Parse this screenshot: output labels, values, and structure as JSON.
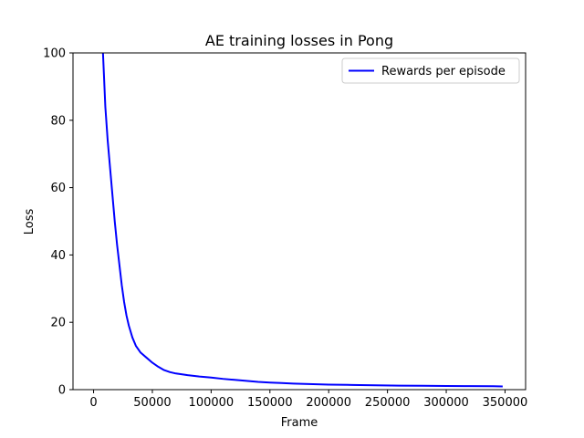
{
  "chart_data": {
    "type": "line",
    "title": "AE training losses in Pong",
    "xlabel": "Frame",
    "ylabel": "Loss",
    "xlim": [
      -17500,
      367500
    ],
    "ylim": [
      0,
      100
    ],
    "xticks": [
      0,
      50000,
      100000,
      150000,
      200000,
      250000,
      300000,
      350000
    ],
    "xtick_labels": [
      "0",
      "50000",
      "100000",
      "150000",
      "200000",
      "250000",
      "300000",
      "350000"
    ],
    "yticks": [
      0,
      20,
      40,
      60,
      80,
      100
    ],
    "ytick_labels": [
      "0",
      "20",
      "40",
      "60",
      "80",
      "100"
    ],
    "grid": false,
    "legend_position": "top-right",
    "series": [
      {
        "name": "Rewards per episode",
        "color": "#0000ff",
        "x": [
          8000,
          9000,
          10000,
          12000,
          14000,
          16000,
          18000,
          20000,
          22000,
          24000,
          26000,
          28000,
          30000,
          33000,
          36000,
          40000,
          45000,
          50000,
          55000,
          60000,
          65000,
          70000,
          80000,
          90000,
          100000,
          110000,
          120000,
          130000,
          140000,
          150000,
          160000,
          170000,
          180000,
          190000,
          200000,
          220000,
          240000,
          260000,
          280000,
          300000,
          320000,
          340000,
          348000
        ],
        "y": [
          100,
          92,
          84,
          74,
          66,
          58,
          50,
          43,
          37,
          31,
          26,
          22,
          19,
          15.5,
          13,
          11,
          9.5,
          8,
          6.8,
          5.8,
          5.2,
          4.8,
          4.3,
          3.9,
          3.6,
          3.2,
          2.9,
          2.6,
          2.3,
          2.1,
          1.95,
          1.8,
          1.7,
          1.6,
          1.5,
          1.4,
          1.3,
          1.2,
          1.15,
          1.1,
          1.05,
          1.0,
          0.95
        ]
      }
    ]
  }
}
